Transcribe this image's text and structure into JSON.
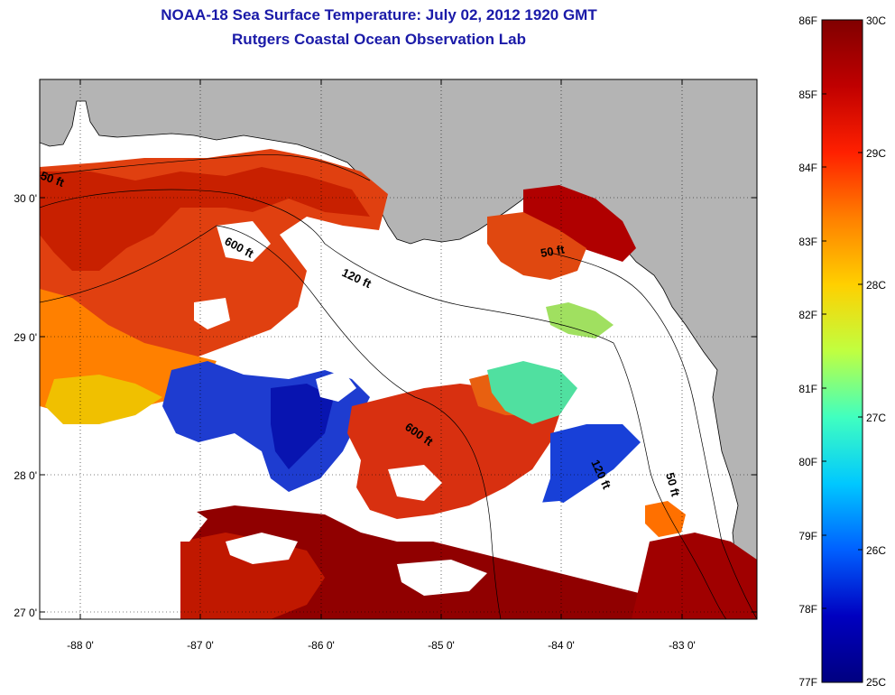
{
  "title": {
    "line1": "NOAA-18 Sea Surface Temperature:  July 02, 2012 1920 GMT",
    "line2": "Rutgers Coastal Ocean Observation Lab"
  },
  "map": {
    "lat_ticks": [
      "30 0'",
      "29 0'",
      "28 0'",
      "27 0'"
    ],
    "lon_ticks": [
      "-88 0'",
      "-87 0'",
      "-86 0'",
      "-85 0'",
      "-84 0'",
      "-83 0'"
    ],
    "contour_labels": [
      "50 ft",
      "600 ft",
      "120 ft",
      "50 ft",
      "600 ft",
      "120 ft",
      "50 ft"
    ]
  },
  "colorbar": {
    "fahrenheit_ticks": [
      "86F",
      "85F",
      "84F",
      "83F",
      "82F",
      "81F",
      "80F",
      "79F",
      "78F",
      "77F"
    ],
    "celsius_ticks": [
      "30C",
      "29C",
      "28C",
      "27C",
      "26C",
      "25C"
    ],
    "colors": [
      "#800000",
      "#c00000",
      "#ff2000",
      "#ff8000",
      "#ffd000",
      "#c0ff40",
      "#40ffc0",
      "#00c8ff",
      "#0060ff",
      "#0000c0",
      "#000080"
    ]
  }
}
